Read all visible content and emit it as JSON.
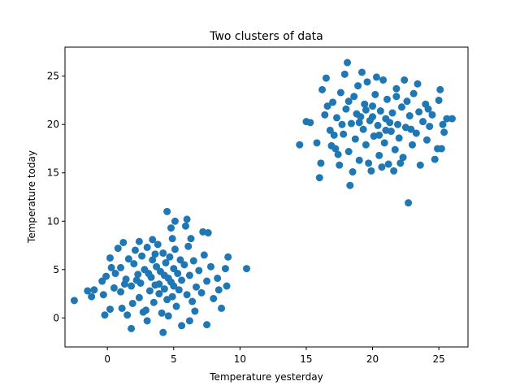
{
  "chart_data": {
    "type": "scatter",
    "title": "Two clusters of data",
    "xlabel": "Temperature yesterday",
    "ylabel": "Temperature today",
    "xlim": [
      -3.2,
      27.2
    ],
    "ylim": [
      -3.0,
      28.0
    ],
    "xticks": [
      0,
      5,
      10,
      15,
      20,
      25
    ],
    "yticks": [
      0,
      5,
      10,
      15,
      20,
      25
    ],
    "marker_color": "#1f77b4",
    "grid": false,
    "series": [
      {
        "values": [
          {
            "x": -2.5,
            "y": 1.8
          },
          {
            "x": -1.5,
            "y": 2.8
          },
          {
            "x": -1.0,
            "y": 2.9
          },
          {
            "x": -1.2,
            "y": 2.2
          },
          {
            "x": -0.2,
            "y": 0.3
          },
          {
            "x": -0.3,
            "y": 2.4
          },
          {
            "x": -0.4,
            "y": 3.8
          },
          {
            "x": -0.1,
            "y": 4.3
          },
          {
            "x": 0.2,
            "y": 6.2
          },
          {
            "x": 0.5,
            "y": 3.1
          },
          {
            "x": 0.8,
            "y": 7.2
          },
          {
            "x": 1.0,
            "y": 5.2
          },
          {
            "x": 1.2,
            "y": 7.8
          },
          {
            "x": 1.0,
            "y": 2.7
          },
          {
            "x": 1.4,
            "y": 4.0
          },
          {
            "x": 1.6,
            "y": 6.1
          },
          {
            "x": 1.1,
            "y": 1.0
          },
          {
            "x": 1.8,
            "y": 3.3
          },
          {
            "x": 2.0,
            "y": 5.6
          },
          {
            "x": 2.1,
            "y": 7.0
          },
          {
            "x": 1.9,
            "y": 1.5
          },
          {
            "x": 2.3,
            "y": 4.5
          },
          {
            "x": 2.4,
            "y": 2.1
          },
          {
            "x": 2.6,
            "y": 6.4
          },
          {
            "x": 2.5,
            "y": 3.6
          },
          {
            "x": 2.8,
            "y": 5.0
          },
          {
            "x": 2.9,
            "y": 0.8
          },
          {
            "x": 3.0,
            "y": 7.3
          },
          {
            "x": 3.2,
            "y": 2.8
          },
          {
            "x": 3.3,
            "y": 4.2
          },
          {
            "x": 3.4,
            "y": 6.0
          },
          {
            "x": 3.5,
            "y": 1.6
          },
          {
            "x": 3.6,
            "y": 3.4
          },
          {
            "x": 3.7,
            "y": 5.3
          },
          {
            "x": 3.8,
            "y": 7.6
          },
          {
            "x": 3.9,
            "y": 2.5
          },
          {
            "x": 4.0,
            "y": 4.8
          },
          {
            "x": 4.1,
            "y": 0.5
          },
          {
            "x": 4.2,
            "y": 6.7
          },
          {
            "x": 4.3,
            "y": 3.0
          },
          {
            "x": 4.4,
            "y": 5.7
          },
          {
            "x": 4.5,
            "y": 1.9
          },
          {
            "x": 4.6,
            "y": 4.1
          },
          {
            "x": 4.7,
            "y": 6.3
          },
          {
            "x": 4.8,
            "y": 3.7
          },
          {
            "x": 4.9,
            "y": 2.2
          },
          {
            "x": 5.0,
            "y": 5.1
          },
          {
            "x": 5.1,
            "y": 7.1
          },
          {
            "x": 5.2,
            "y": 1.2
          },
          {
            "x": 5.3,
            "y": 4.6
          },
          {
            "x": 5.4,
            "y": 2.9
          },
          {
            "x": 5.5,
            "y": 6.0
          },
          {
            "x": 5.6,
            "y": 3.9
          },
          {
            "x": 5.8,
            "y": 5.5
          },
          {
            "x": 6.0,
            "y": 2.4
          },
          {
            "x": 6.1,
            "y": 7.4
          },
          {
            "x": 6.2,
            "y": 4.4
          },
          {
            "x": 6.4,
            "y": 1.7
          },
          {
            "x": 6.5,
            "y": 5.9
          },
          {
            "x": 6.7,
            "y": 3.2
          },
          {
            "x": 6.9,
            "y": 4.9
          },
          {
            "x": 7.1,
            "y": 2.6
          },
          {
            "x": 7.3,
            "y": 6.5
          },
          {
            "x": 7.5,
            "y": 3.8
          },
          {
            "x": 7.8,
            "y": 5.3
          },
          {
            "x": 8.0,
            "y": 2.0
          },
          {
            "x": 8.3,
            "y": 4.1
          },
          {
            "x": 8.6,
            "y": 1.0
          },
          {
            "x": 8.9,
            "y": 5.1
          },
          {
            "x": 9.1,
            "y": 6.3
          },
          {
            "x": 7.6,
            "y": 8.8
          },
          {
            "x": 7.2,
            "y": 8.9
          },
          {
            "x": 5.9,
            "y": 9.5
          },
          {
            "x": 6.0,
            "y": 10.2
          },
          {
            "x": 4.5,
            "y": 11.0
          },
          {
            "x": 5.1,
            "y": 10.0
          },
          {
            "x": 4.8,
            "y": 9.3
          },
          {
            "x": 10.5,
            "y": 5.1
          },
          {
            "x": 4.2,
            "y": -1.5
          },
          {
            "x": 1.8,
            "y": -1.1
          },
          {
            "x": 3.0,
            "y": -0.3
          },
          {
            "x": 5.6,
            "y": -0.8
          },
          {
            "x": 7.5,
            "y": -0.7
          },
          {
            "x": 6.2,
            "y": -0.3
          },
          {
            "x": 3.4,
            "y": 8.1
          },
          {
            "x": 2.4,
            "y": 7.9
          },
          {
            "x": 8.4,
            "y": 2.9
          },
          {
            "x": 9.0,
            "y": 3.3
          },
          {
            "x": 0.3,
            "y": 5.2
          },
          {
            "x": 0.6,
            "y": 4.6
          },
          {
            "x": 1.5,
            "y": 0.3
          },
          {
            "x": 2.7,
            "y": 0.6
          },
          {
            "x": 4.6,
            "y": 0.2
          },
          {
            "x": 6.6,
            "y": 0.7
          },
          {
            "x": 3.1,
            "y": 4.6
          },
          {
            "x": 3.9,
            "y": 3.5
          },
          {
            "x": 4.3,
            "y": 4.4
          },
          {
            "x": 2.2,
            "y": 3.9
          },
          {
            "x": 5.0,
            "y": 3.3
          },
          {
            "x": 3.6,
            "y": 6.6
          },
          {
            "x": 4.9,
            "y": 8.2
          },
          {
            "x": 6.3,
            "y": 8.2
          },
          {
            "x": 1.3,
            "y": 3.5
          },
          {
            "x": 0.2,
            "y": 0.9
          },
          {
            "x": 14.5,
            "y": 17.9
          },
          {
            "x": 15.0,
            "y": 20.3
          },
          {
            "x": 15.3,
            "y": 20.2
          },
          {
            "x": 15.8,
            "y": 18.1
          },
          {
            "x": 16.0,
            "y": 14.5
          },
          {
            "x": 16.1,
            "y": 16.0
          },
          {
            "x": 16.2,
            "y": 23.6
          },
          {
            "x": 16.4,
            "y": 21.0
          },
          {
            "x": 16.5,
            "y": 24.8
          },
          {
            "x": 16.8,
            "y": 19.4
          },
          {
            "x": 17.0,
            "y": 22.3
          },
          {
            "x": 17.2,
            "y": 17.5
          },
          {
            "x": 17.3,
            "y": 20.7
          },
          {
            "x": 17.5,
            "y": 15.8
          },
          {
            "x": 17.6,
            "y": 23.3
          },
          {
            "x": 17.8,
            "y": 19.0
          },
          {
            "x": 18.0,
            "y": 21.6
          },
          {
            "x": 18.1,
            "y": 26.4
          },
          {
            "x": 18.2,
            "y": 17.2
          },
          {
            "x": 18.3,
            "y": 13.7
          },
          {
            "x": 18.4,
            "y": 20.1
          },
          {
            "x": 18.6,
            "y": 22.9
          },
          {
            "x": 18.7,
            "y": 18.5
          },
          {
            "x": 18.9,
            "y": 24.0
          },
          {
            "x": 19.0,
            "y": 16.3
          },
          {
            "x": 19.1,
            "y": 20.8
          },
          {
            "x": 19.3,
            "y": 19.5
          },
          {
            "x": 19.4,
            "y": 22.1
          },
          {
            "x": 19.5,
            "y": 17.9
          },
          {
            "x": 19.6,
            "y": 24.4
          },
          {
            "x": 19.8,
            "y": 20.4
          },
          {
            "x": 19.9,
            "y": 15.2
          },
          {
            "x": 20.0,
            "y": 21.9
          },
          {
            "x": 20.1,
            "y": 18.8
          },
          {
            "x": 20.2,
            "y": 23.1
          },
          {
            "x": 20.4,
            "y": 19.9
          },
          {
            "x": 20.5,
            "y": 16.8
          },
          {
            "x": 20.6,
            "y": 21.4
          },
          {
            "x": 20.8,
            "y": 24.6
          },
          {
            "x": 20.9,
            "y": 18.1
          },
          {
            "x": 21.0,
            "y": 20.6
          },
          {
            "x": 21.1,
            "y": 22.6
          },
          {
            "x": 21.2,
            "y": 15.9
          },
          {
            "x": 21.4,
            "y": 19.3
          },
          {
            "x": 21.5,
            "y": 21.2
          },
          {
            "x": 21.7,
            "y": 17.4
          },
          {
            "x": 21.8,
            "y": 23.7
          },
          {
            "x": 21.9,
            "y": 20.0
          },
          {
            "x": 22.0,
            "y": 18.6
          },
          {
            "x": 22.2,
            "y": 21.8
          },
          {
            "x": 22.3,
            "y": 16.6
          },
          {
            "x": 22.4,
            "y": 24.6
          },
          {
            "x": 22.5,
            "y": 19.7
          },
          {
            "x": 22.6,
            "y": 22.4
          },
          {
            "x": 22.7,
            "y": 11.9
          },
          {
            "x": 22.8,
            "y": 20.9
          },
          {
            "x": 23.0,
            "y": 17.9
          },
          {
            "x": 23.1,
            "y": 23.2
          },
          {
            "x": 23.3,
            "y": 19.1
          },
          {
            "x": 23.5,
            "y": 21.3
          },
          {
            "x": 23.6,
            "y": 15.8
          },
          {
            "x": 23.8,
            "y": 20.3
          },
          {
            "x": 24.0,
            "y": 22.1
          },
          {
            "x": 24.1,
            "y": 18.4
          },
          {
            "x": 24.3,
            "y": 19.8
          },
          {
            "x": 24.5,
            "y": 21.0
          },
          {
            "x": 24.7,
            "y": 16.4
          },
          {
            "x": 24.9,
            "y": 17.5
          },
          {
            "x": 25.0,
            "y": 22.5
          },
          {
            "x": 25.2,
            "y": 17.5
          },
          {
            "x": 25.3,
            "y": 20.0
          },
          {
            "x": 25.4,
            "y": 19.2
          },
          {
            "x": 25.6,
            "y": 20.6
          },
          {
            "x": 26.0,
            "y": 20.6
          },
          {
            "x": 25.1,
            "y": 23.6
          },
          {
            "x": 23.4,
            "y": 24.2
          },
          {
            "x": 17.9,
            "y": 25.2
          },
          {
            "x": 19.2,
            "y": 25.4
          },
          {
            "x": 20.3,
            "y": 24.9
          },
          {
            "x": 16.6,
            "y": 21.9
          },
          {
            "x": 16.9,
            "y": 17.8
          },
          {
            "x": 17.4,
            "y": 16.9
          },
          {
            "x": 18.5,
            "y": 15.1
          },
          {
            "x": 19.7,
            "y": 16.0
          },
          {
            "x": 20.7,
            "y": 15.6
          },
          {
            "x": 21.6,
            "y": 15.2
          },
          {
            "x": 22.1,
            "y": 16.0
          },
          {
            "x": 19.0,
            "y": 20.2
          },
          {
            "x": 20.0,
            "y": 20.8
          },
          {
            "x": 21.0,
            "y": 19.4
          },
          {
            "x": 19.5,
            "y": 21.5
          },
          {
            "x": 20.5,
            "y": 18.9
          },
          {
            "x": 18.8,
            "y": 21.1
          },
          {
            "x": 21.3,
            "y": 20.2
          },
          {
            "x": 17.7,
            "y": 20.0
          },
          {
            "x": 22.9,
            "y": 19.5
          },
          {
            "x": 18.2,
            "y": 22.4
          },
          {
            "x": 21.8,
            "y": 22.9
          },
          {
            "x": 17.1,
            "y": 18.9
          },
          {
            "x": 24.2,
            "y": 21.6
          }
        ]
      }
    ]
  }
}
